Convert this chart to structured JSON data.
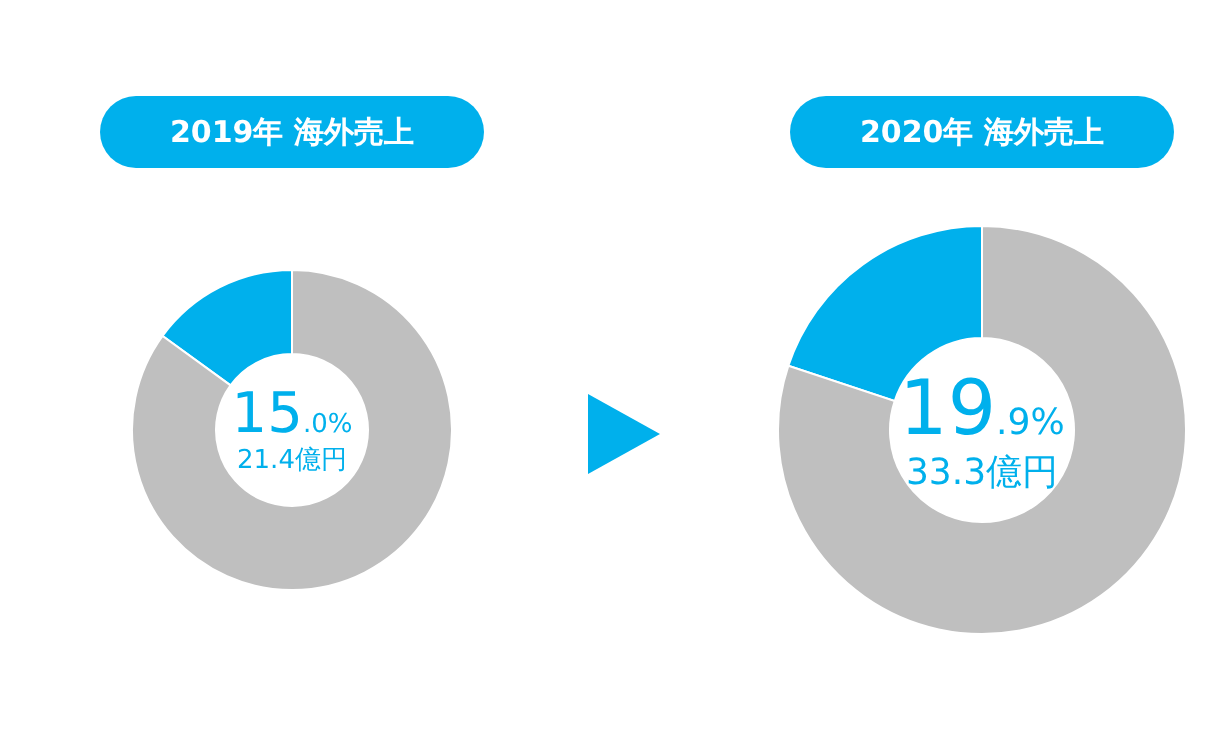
{
  "chart_data": [
    {
      "type": "donut",
      "title": "2019年 海外売上",
      "categories": [
        null,
        null
      ],
      "values": [
        15.0,
        85.0
      ],
      "colors": [
        "#00b0ec",
        "#bfbfbf"
      ],
      "value_labels": [
        "15.0%",
        null
      ],
      "annotations": [
        "21.4億円"
      ]
    },
    {
      "type": "donut",
      "title": "2020年 海外売上",
      "categories": [
        null,
        null
      ],
      "values": [
        19.9,
        80.1
      ],
      "colors": [
        "#00b0ec",
        "#bfbfbf"
      ],
      "value_labels": [
        "19.9%",
        null
      ],
      "annotations": [
        "33.3億円"
      ]
    }
  ]
}
